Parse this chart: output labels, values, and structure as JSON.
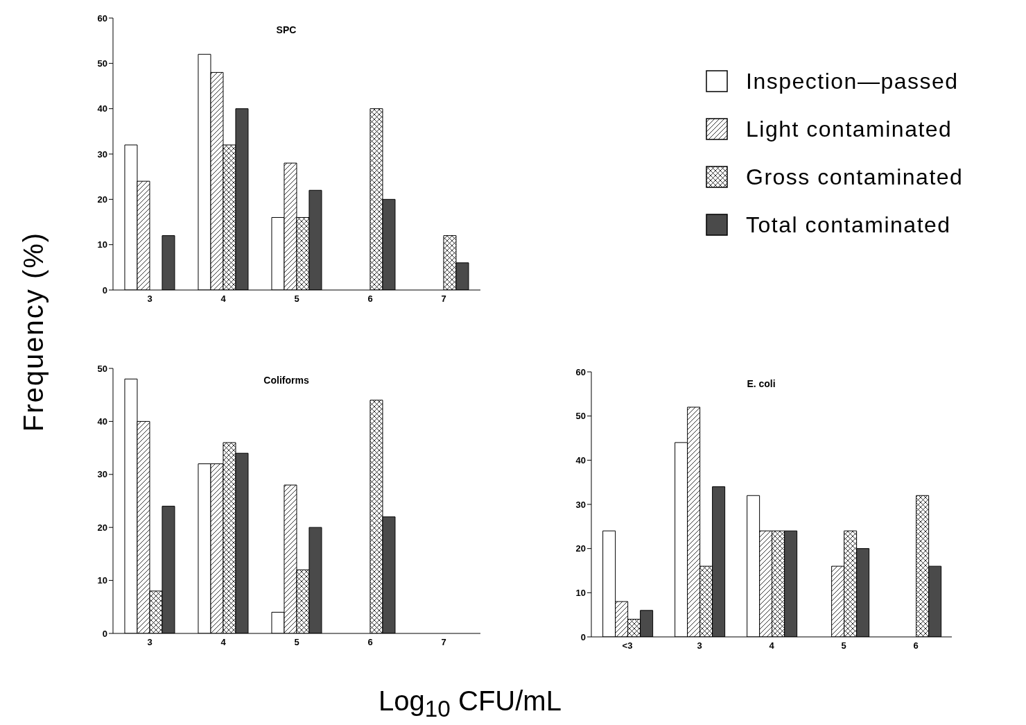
{
  "chart_data": [
    {
      "type": "bar",
      "title": "SPC",
      "ylabel": "Frequency (%)",
      "categories": [
        "3",
        "4",
        "5",
        "6",
        "7"
      ],
      "legend": "right",
      "ylim": [
        0,
        60
      ],
      "yticks": [
        0,
        10,
        20,
        30,
        40,
        50,
        60
      ],
      "series": [
        {
          "name": "Inspection—passed",
          "color": "#ffffff",
          "values": [
            32,
            52,
            16,
            0,
            0
          ]
        },
        {
          "name": "Light contaminated",
          "color": "#000000",
          "values": [
            24,
            48,
            28,
            0,
            0
          ]
        },
        {
          "name": "Gross contaminated",
          "color": "#000000",
          "values": [
            0,
            32,
            16,
            40,
            12
          ]
        },
        {
          "name": "Total contaminated",
          "color": "#4a4a4a",
          "values": [
            12,
            40,
            22,
            20,
            6
          ]
        }
      ]
    },
    {
      "type": "bar",
      "title": "Coliforms",
      "categories": [
        "3",
        "4",
        "5",
        "6",
        "7"
      ],
      "ylim": [
        0,
        50
      ],
      "yticks": [
        0,
        10,
        20,
        30,
        40,
        50
      ],
      "series": [
        {
          "color": "#ffffff",
          "values": [
            48,
            32,
            4,
            0,
            0
          ]
        },
        {
          "color": "#000000",
          "values": [
            40,
            32,
            28,
            0,
            0
          ]
        },
        {
          "color": "#000000",
          "values": [
            8,
            36,
            12,
            44,
            0
          ]
        },
        {
          "color": "#4a4a4a",
          "values": [
            24,
            34,
            20,
            22,
            0
          ]
        }
      ]
    },
    {
      "type": "bar",
      "title": "E. coli",
      "xlabel": "Log$_{10}$ CFU/mL",
      "categories": [
        "<3",
        "3",
        "4",
        "5",
        "6"
      ],
      "ylim": [
        0,
        60
      ],
      "yticks": [
        0,
        10,
        20,
        30,
        40,
        50,
        60
      ],
      "series": [
        {
          "color": "#ffffff",
          "values": [
            24,
            44,
            32,
            0,
            0
          ]
        },
        {
          "color": "#000000",
          "values": [
            8,
            52,
            24,
            16,
            0
          ]
        },
        {
          "color": "#000000",
          "values": [
            4,
            16,
            24,
            24,
            32
          ]
        },
        {
          "color": "#4a4a4a",
          "values": [
            6,
            34,
            24,
            20,
            16
          ]
        }
      ]
    }
  ]
}
